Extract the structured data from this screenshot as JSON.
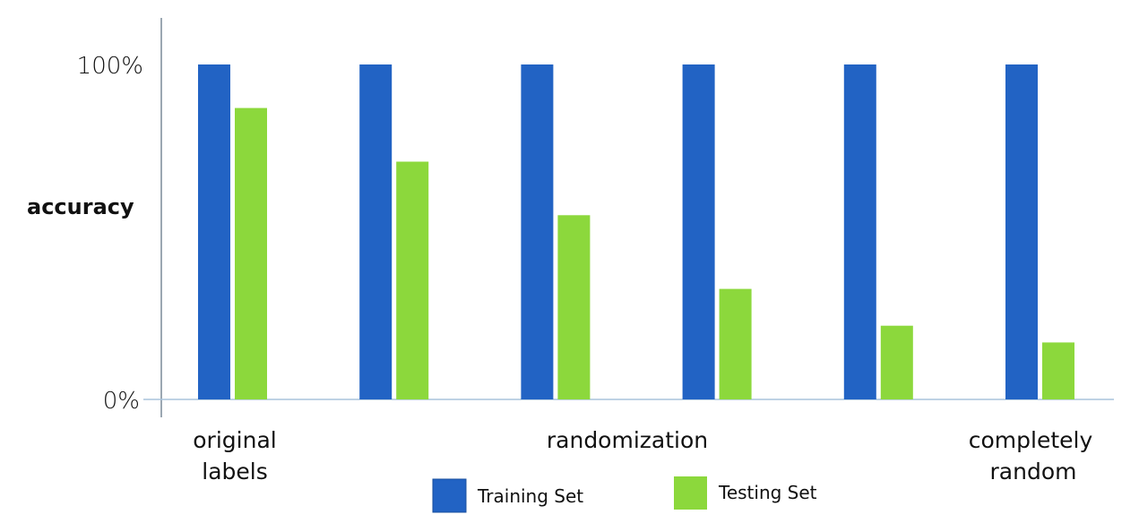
{
  "chart_data": {
    "type": "bar",
    "ylabel": "accuracy",
    "ylim": [
      0,
      100
    ],
    "ytick_labels": [
      "100%",
      "0%"
    ],
    "ytick_values": [
      100,
      0
    ],
    "category_labels": [
      {
        "position": 0,
        "lines": [
          "original",
          "labels"
        ]
      },
      {
        "position": 2.5,
        "lines": [
          "randomization"
        ]
      },
      {
        "position": 5,
        "lines": [
          "completely",
          "random"
        ]
      }
    ],
    "categories_count": 6,
    "series": [
      {
        "name": "Training Set",
        "color": "#2263c4",
        "values": [
          100,
          100,
          100,
          100,
          100,
          100
        ]
      },
      {
        "name": "Testing Set",
        "color": "#8cd83c",
        "values": [
          87,
          71,
          55,
          33,
          22,
          17
        ]
      }
    ],
    "legend_position": "bottom-center",
    "grid": false
  }
}
